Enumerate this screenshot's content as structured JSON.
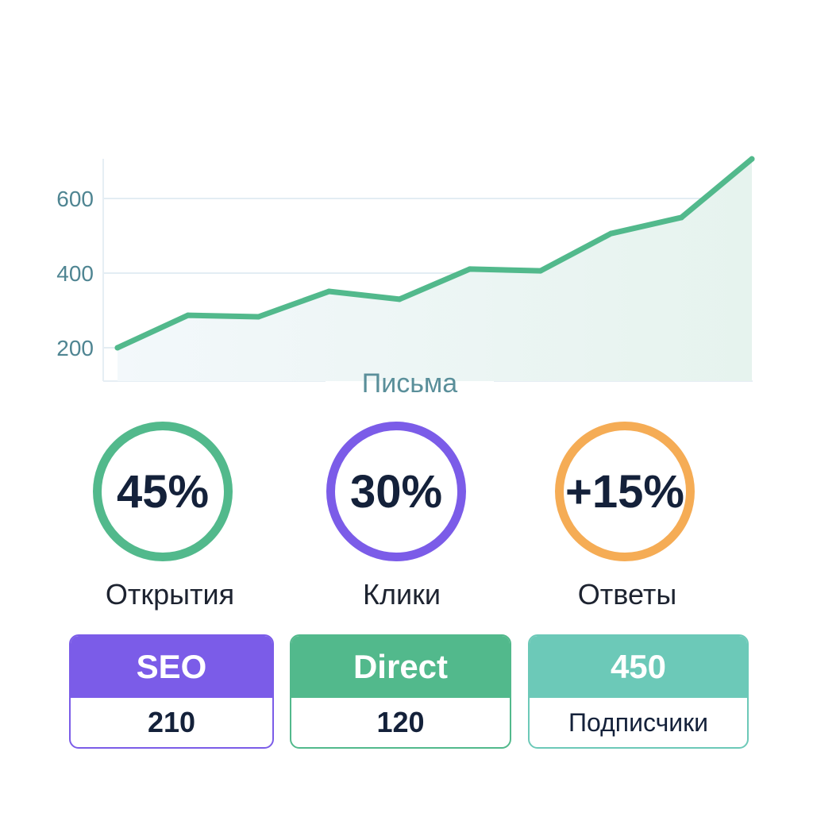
{
  "chart_data": {
    "type": "area",
    "title": "",
    "xlabel": "Письма",
    "ylabel": "",
    "x": [
      1,
      2,
      3,
      4,
      5,
      6,
      7,
      8,
      9,
      10
    ],
    "values": [
      200,
      287,
      283,
      351,
      330,
      411,
      406,
      506,
      549,
      706
    ],
    "yticks": [
      "200",
      "400",
      "600"
    ],
    "ylim": [
      110,
      710
    ],
    "grid": true,
    "line_color": "#52b98c"
  },
  "metrics": [
    {
      "value": "45%",
      "label": "Открытия",
      "color": "#52b98c"
    },
    {
      "value": "30%",
      "label": "Клики",
      "color": "#7b5ce8"
    },
    {
      "value": "+15%",
      "label": "Ответы",
      "color": "#f5ac55"
    }
  ],
  "cards": [
    {
      "title": "SEO",
      "value": "210",
      "color": "#7b5ce8"
    },
    {
      "title": "Direct",
      "value": "120",
      "color": "#52b98c"
    },
    {
      "title": "450",
      "value": "Подписчики",
      "color": "#6cc9b8"
    }
  ]
}
